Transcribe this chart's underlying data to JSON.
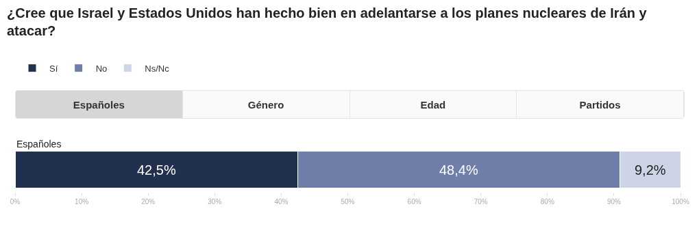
{
  "chart_data": {
    "type": "bar",
    "orientation": "horizontal",
    "stacked": true,
    "title": "¿Cree que Israel y Estados Unidos han hecho bien en adelantarse a los planes nucleares de Irán y atacar?",
    "categories": [
      "Españoles"
    ],
    "series": [
      {
        "name": "Sí",
        "color": "#22304f",
        "values": [
          42.5
        ],
        "value_labels": [
          "42,5%"
        ]
      },
      {
        "name": "No",
        "color": "#6f7fa9",
        "values": [
          48.4
        ],
        "value_labels": [
          "48,4%"
        ]
      },
      {
        "name": "Ns/Nc",
        "color": "#ccd4e6",
        "values": [
          9.2
        ],
        "value_labels": [
          "9,2%"
        ]
      }
    ],
    "xlim": [
      0,
      100
    ],
    "xticks": [
      {
        "value": 0,
        "label": "0%"
      },
      {
        "value": 10,
        "label": "10%"
      },
      {
        "value": 20,
        "label": "20%"
      },
      {
        "value": 30,
        "label": "30%"
      },
      {
        "value": 40,
        "label": "40%"
      },
      {
        "value": 50,
        "label": "50%"
      },
      {
        "value": 60,
        "label": "60%"
      },
      {
        "value": 70,
        "label": "70%"
      },
      {
        "value": 80,
        "label": "80%"
      },
      {
        "value": 90,
        "label": "90%"
      },
      {
        "value": 100,
        "label": "100%"
      }
    ],
    "grid": false,
    "legend": "top left",
    "annotations": [
      "Españoles",
      "Género",
      "Edad",
      "Partidos"
    ]
  }
}
